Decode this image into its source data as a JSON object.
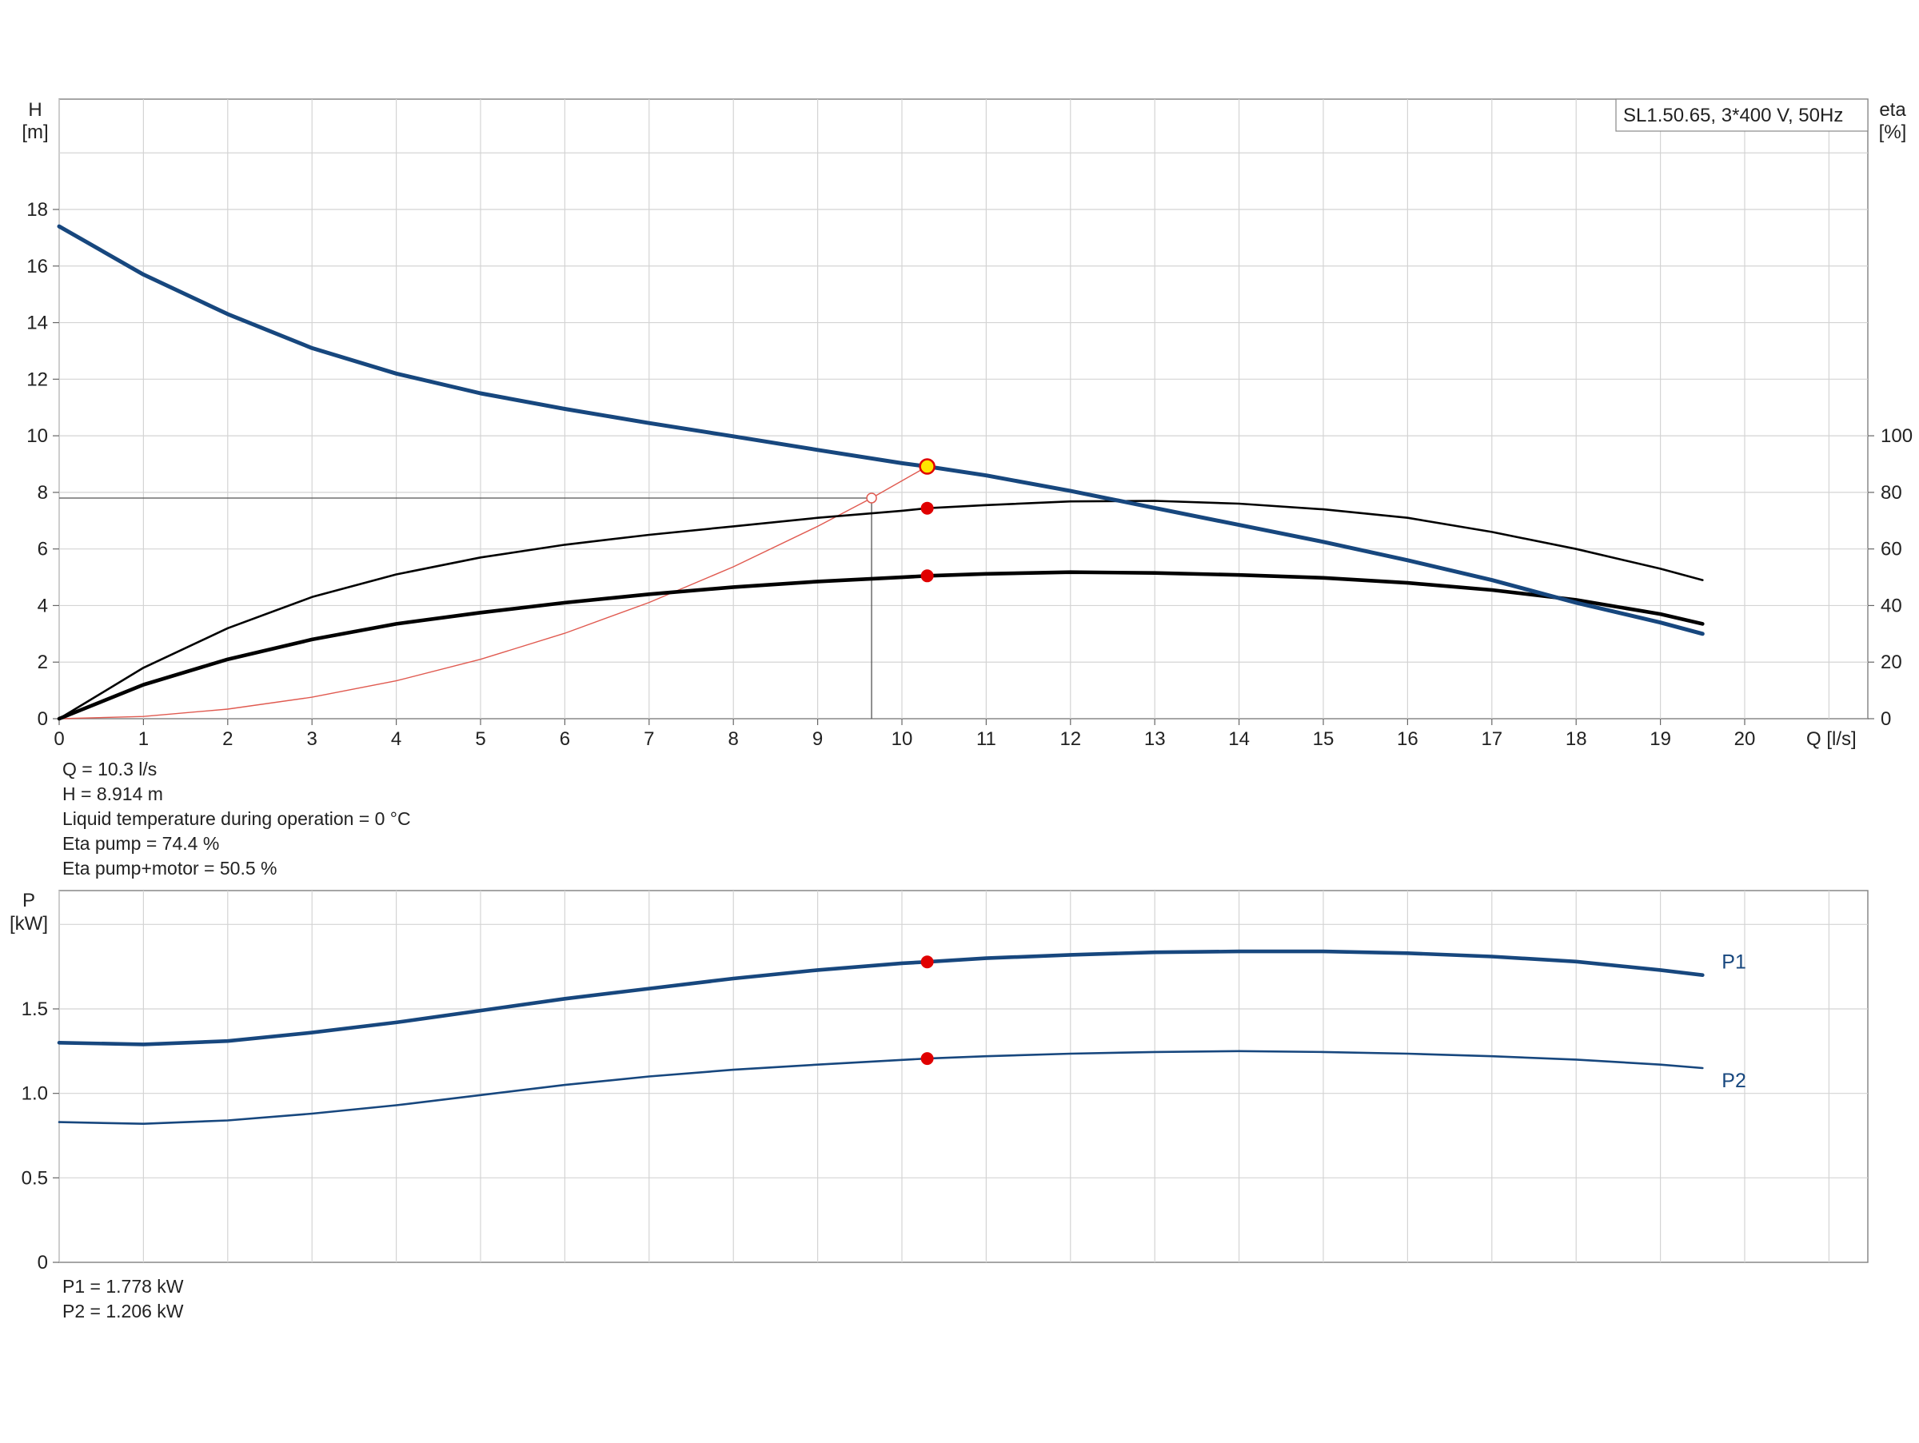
{
  "chart_data": [
    {
      "id": "qh",
      "type": "line",
      "title": "SL1.50.65, 3*400 V, 50Hz",
      "xlabel": "Q [l/s]",
      "ylabel": [
        "H",
        "[m]"
      ],
      "y2label": [
        "eta",
        "[%]"
      ],
      "xlim": [
        0,
        21
      ],
      "ylim": [
        0,
        22
      ],
      "y2lim": [
        0,
        220
      ],
      "xticks": [
        0,
        1,
        2,
        3,
        4,
        5,
        6,
        7,
        8,
        9,
        10,
        11,
        12,
        13,
        14,
        15,
        16,
        17,
        18,
        19,
        20
      ],
      "yticks": [
        0,
        2,
        4,
        6,
        8,
        10,
        12,
        14,
        16,
        18
      ],
      "y2ticks": [
        0,
        20,
        40,
        60,
        80,
        100
      ],
      "grid": true,
      "series": [
        {
          "key": "h_curve",
          "axis": "left",
          "color": "#17477e",
          "x": [
            0,
            1,
            2,
            3,
            4,
            5,
            6,
            7,
            8,
            9,
            10,
            10.3,
            11,
            12,
            13,
            14,
            15,
            16,
            17,
            18,
            19,
            19.5
          ],
          "y": [
            17.4,
            15.7,
            14.3,
            13.1,
            12.2,
            11.5,
            10.95,
            10.45,
            9.98,
            9.5,
            9.03,
            8.914,
            8.6,
            8.05,
            7.45,
            6.85,
            6.25,
            5.6,
            4.9,
            4.1,
            3.4,
            3.0
          ]
        },
        {
          "key": "eta_pump",
          "axis": "right",
          "color": "#000000",
          "x": [
            0,
            1,
            2,
            3,
            4,
            5,
            6,
            7,
            8,
            9,
            10,
            10.3,
            11,
            12,
            13,
            14,
            15,
            16,
            17,
            18,
            19,
            19.5
          ],
          "y": [
            0,
            18,
            32,
            43,
            51,
            57,
            61.5,
            65,
            68,
            71,
            73.5,
            74.4,
            75.5,
            76.8,
            77,
            76,
            74,
            71,
            66,
            60,
            53,
            49
          ]
        },
        {
          "key": "eta_pump_motor",
          "axis": "right",
          "color": "#000000",
          "x": [
            0,
            1,
            2,
            3,
            4,
            5,
            6,
            7,
            8,
            9,
            10,
            10.3,
            11,
            12,
            13,
            14,
            15,
            16,
            17,
            18,
            19,
            19.5
          ],
          "y": [
            0,
            12,
            21,
            28,
            33.5,
            37.5,
            41,
            44,
            46.5,
            48.5,
            50,
            50.5,
            51.2,
            51.8,
            51.5,
            50.8,
            49.8,
            48,
            45.5,
            42,
            37,
            33.5
          ]
        },
        {
          "key": "system_curve",
          "axis": "left",
          "color": "#e05a50",
          "x": [
            0,
            1,
            2,
            3,
            4,
            5,
            6,
            7,
            8,
            9,
            9.64,
            10.3
          ],
          "y": [
            0,
            0.08,
            0.34,
            0.76,
            1.34,
            2.1,
            3.02,
            4.11,
            5.37,
            6.8,
            7.8,
            8.914
          ]
        }
      ],
      "duty_point": {
        "x": 10.3,
        "y": 8.914,
        "fill": "#ffe500",
        "stroke": "#e00000"
      },
      "eta_points": [
        {
          "x": 10.3,
          "y": 74.4
        },
        {
          "x": 10.3,
          "y": 50.5
        }
      ],
      "marker_color": "#e00000",
      "system_point": {
        "x": 9.64,
        "y": 7.8
      },
      "guide_color": "#555555"
    },
    {
      "id": "power",
      "type": "line",
      "ylabel": [
        "P",
        "[kW]"
      ],
      "xlim": [
        0,
        21
      ],
      "ylim": [
        0,
        2.2
      ],
      "yticks": [
        0,
        0.5,
        1.0,
        1.5
      ],
      "ytick_labels": [
        "0",
        "0.5",
        "1.0",
        "1.5"
      ],
      "grid": true,
      "series": [
        {
          "key": "p1",
          "name": "P1",
          "color": "#17477e",
          "x": [
            0,
            1,
            2,
            3,
            4,
            5,
            6,
            7,
            8,
            9,
            10,
            10.3,
            11,
            12,
            13,
            14,
            15,
            16,
            17,
            18,
            19,
            19.5
          ],
          "y": [
            1.3,
            1.29,
            1.31,
            1.36,
            1.42,
            1.49,
            1.56,
            1.62,
            1.68,
            1.73,
            1.77,
            1.778,
            1.8,
            1.82,
            1.835,
            1.84,
            1.84,
            1.83,
            1.81,
            1.78,
            1.73,
            1.7
          ]
        },
        {
          "key": "p2",
          "name": "P2",
          "color": "#17477e",
          "x": [
            0,
            1,
            2,
            3,
            4,
            5,
            6,
            7,
            8,
            9,
            10,
            10.3,
            11,
            12,
            13,
            14,
            15,
            16,
            17,
            18,
            19,
            19.5
          ],
          "y": [
            0.83,
            0.82,
            0.84,
            0.88,
            0.93,
            0.99,
            1.05,
            1.1,
            1.14,
            1.17,
            1.198,
            1.206,
            1.22,
            1.235,
            1.245,
            1.25,
            1.245,
            1.235,
            1.22,
            1.2,
            1.17,
            1.15
          ]
        }
      ],
      "points": [
        {
          "x": 10.3,
          "y": 1.778
        },
        {
          "x": 10.3,
          "y": 1.206
        }
      ],
      "marker_color": "#e00000"
    }
  ],
  "info_lines": [
    "Q = 10.3 l/s",
    "H = 8.914 m",
    "Liquid temperature during operation = 0 °C",
    "Eta pump = 74.4 %",
    "Eta pump+motor = 50.5 %"
  ],
  "power_lines": [
    "P1 = 1.778 kW",
    "P2 = 1.206 kW"
  ]
}
